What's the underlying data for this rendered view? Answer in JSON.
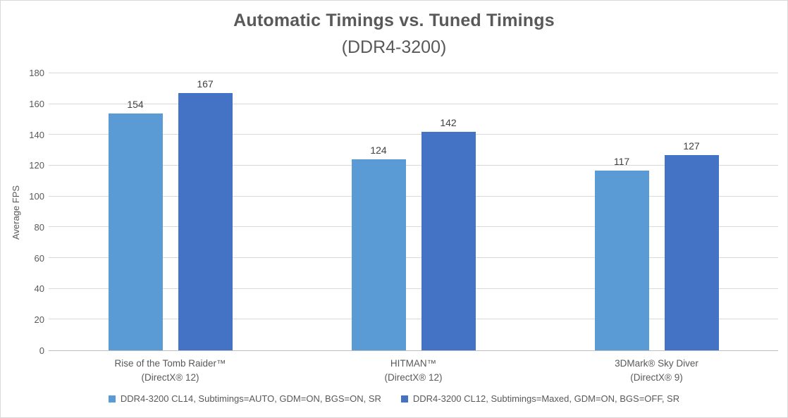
{
  "colors": {
    "background": "#FFFFFF",
    "border": "#D9D9D9",
    "gridline": "#D9D9D9",
    "axis_line": "#BFBFBF",
    "title_text": "#595959",
    "axis_text": "#595959",
    "data_label": "#404040",
    "series1": "#5B9BD5",
    "series2": "#4472C4"
  },
  "chart_data": {
    "type": "bar",
    "title": "Automatic Timings vs. Tuned Timings",
    "subtitle": "(DDR4-3200)",
    "xlabel": "",
    "ylabel": "Average FPS",
    "ylim": [
      0,
      180
    ],
    "yticks": [
      0,
      20,
      40,
      60,
      80,
      100,
      120,
      140,
      160,
      180
    ],
    "grid": "horizontal",
    "legend_position": "bottom",
    "categories": [
      [
        "Rise of the Tomb Raider™",
        "(DirectX® 12)"
      ],
      [
        "HITMAN™",
        "(DirectX® 12)"
      ],
      [
        "3DMark® Sky Diver",
        "(DirectX® 9)"
      ]
    ],
    "series": [
      {
        "name": "DDR4-3200 CL14, Subtimings=AUTO, GDM=ON, BGS=ON, SR",
        "color": "#5B9BD5",
        "values": [
          154,
          124,
          117
        ]
      },
      {
        "name": "DDR4-3200 CL12, Subtimings=Maxed, GDM=ON, BGS=OFF, SR",
        "color": "#4472C4",
        "values": [
          167,
          142,
          127
        ]
      }
    ]
  }
}
